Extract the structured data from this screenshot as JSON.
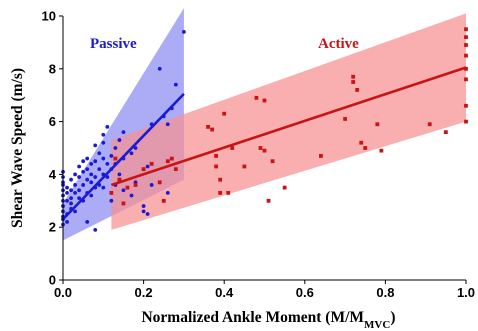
{
  "chart_data": {
    "type": "scatter",
    "title": "",
    "xlabel": "Normalized Ankle Moment (M/M",
    "xlabel_sub": "MVC",
    "xlabel_end": ")",
    "ylabel": "Shear Wave Speed (m/s)",
    "xlim": [
      0,
      1
    ],
    "ylim": [
      0,
      10
    ],
    "x_ticks": [
      "0.0",
      "0.2",
      "0.4",
      "0.6",
      "0.8",
      "1.0"
    ],
    "y_ticks": [
      "0",
      "2",
      "4",
      "6",
      "8",
      "10"
    ],
    "grid": false,
    "series": [
      {
        "name": "Passive",
        "color": "#1a1ad6",
        "band_color": "#8a8af2",
        "marker": "circle",
        "fit": {
          "x": [
            0.0,
            0.3
          ],
          "y": [
            2.3,
            7.05
          ]
        },
        "band": {
          "x": [
            0.0,
            0.3
          ],
          "upper": [
            2.9,
            10.3
          ],
          "lower": [
            1.5,
            3.8
          ]
        },
        "points": [
          [
            0.0,
            2.4
          ],
          [
            0.0,
            2.6
          ],
          [
            0.0,
            2.8
          ],
          [
            0.0,
            3.0
          ],
          [
            0.0,
            3.2
          ],
          [
            0.0,
            3.4
          ],
          [
            0.0,
            3.6
          ],
          [
            0.0,
            3.7
          ],
          [
            0.0,
            3.9
          ],
          [
            0.0,
            4.1
          ],
          [
            0.0,
            2.1
          ],
          [
            0.0,
            2.3
          ],
          [
            0.01,
            2.5
          ],
          [
            0.01,
            3.0
          ],
          [
            0.01,
            3.3
          ],
          [
            0.01,
            3.5
          ],
          [
            0.01,
            2.2
          ],
          [
            0.02,
            2.7
          ],
          [
            0.02,
            3.1
          ],
          [
            0.02,
            3.4
          ],
          [
            0.02,
            3.8
          ],
          [
            0.02,
            2.9
          ],
          [
            0.03,
            3.3
          ],
          [
            0.03,
            3.6
          ],
          [
            0.03,
            4.0
          ],
          [
            0.03,
            2.6
          ],
          [
            0.04,
            3.4
          ],
          [
            0.04,
            3.9
          ],
          [
            0.04,
            4.3
          ],
          [
            0.04,
            3.1
          ],
          [
            0.05,
            3.6
          ],
          [
            0.05,
            4.5
          ],
          [
            0.05,
            3.0
          ],
          [
            0.05,
            4.1
          ],
          [
            0.06,
            3.3
          ],
          [
            0.06,
            3.8
          ],
          [
            0.06,
            4.2
          ],
          [
            0.06,
            2.2
          ],
          [
            0.06,
            4.6
          ],
          [
            0.07,
            3.7
          ],
          [
            0.07,
            4.4
          ],
          [
            0.07,
            3.2
          ],
          [
            0.07,
            4.0
          ],
          [
            0.08,
            3.5
          ],
          [
            0.08,
            4.5
          ],
          [
            0.08,
            5.1
          ],
          [
            0.08,
            1.9
          ],
          [
            0.08,
            3.9
          ],
          [
            0.09,
            4.2
          ],
          [
            0.09,
            3.6
          ],
          [
            0.09,
            4.8
          ],
          [
            0.1,
            4.0
          ],
          [
            0.1,
            4.6
          ],
          [
            0.1,
            5.2
          ],
          [
            0.1,
            5.5
          ],
          [
            0.1,
            3.5
          ],
          [
            0.11,
            5.8
          ],
          [
            0.11,
            4.4
          ],
          [
            0.11,
            3.9
          ],
          [
            0.12,
            4.7
          ],
          [
            0.12,
            3.0
          ],
          [
            0.12,
            4.2
          ],
          [
            0.13,
            5.0
          ],
          [
            0.13,
            4.4
          ],
          [
            0.13,
            3.6
          ],
          [
            0.14,
            5.3
          ],
          [
            0.14,
            4.0
          ],
          [
            0.14,
            3.8
          ],
          [
            0.15,
            4.6
          ],
          [
            0.15,
            5.6
          ],
          [
            0.15,
            3.4
          ],
          [
            0.17,
            3.2
          ],
          [
            0.17,
            4.8
          ],
          [
            0.18,
            3.7
          ],
          [
            0.18,
            5.0
          ],
          [
            0.2,
            2.6
          ],
          [
            0.2,
            2.8
          ],
          [
            0.21,
            2.5
          ],
          [
            0.21,
            4.3
          ],
          [
            0.22,
            5.9
          ],
          [
            0.22,
            3.6
          ],
          [
            0.24,
            8.0
          ],
          [
            0.25,
            3.0
          ],
          [
            0.25,
            6.2
          ],
          [
            0.26,
            5.9
          ],
          [
            0.26,
            3.3
          ],
          [
            0.27,
            6.5
          ],
          [
            0.28,
            7.4
          ],
          [
            0.3,
            9.4
          ]
        ]
      },
      {
        "name": "Active",
        "color": "#c81414",
        "band_color": "#f79090",
        "marker": "square",
        "fit": {
          "x": [
            0.12,
            1.0
          ],
          "y": [
            3.6,
            8.05
          ]
        },
        "band": {
          "x": [
            0.12,
            1.0
          ],
          "upper": [
            5.3,
            10.1
          ],
          "lower": [
            1.9,
            6.0
          ]
        },
        "points": [
          [
            0.12,
            3.3
          ],
          [
            0.13,
            4.6
          ],
          [
            0.14,
            3.8
          ],
          [
            0.15,
            2.9
          ],
          [
            0.16,
            3.5
          ],
          [
            0.18,
            3.6
          ],
          [
            0.2,
            4.2
          ],
          [
            0.22,
            4.4
          ],
          [
            0.24,
            3.7
          ],
          [
            0.25,
            3.0
          ],
          [
            0.26,
            4.5
          ],
          [
            0.27,
            4.6
          ],
          [
            0.28,
            4.2
          ],
          [
            0.36,
            5.8
          ],
          [
            0.37,
            5.7
          ],
          [
            0.38,
            4.7
          ],
          [
            0.38,
            4.3
          ],
          [
            0.39,
            3.8
          ],
          [
            0.39,
            3.3
          ],
          [
            0.4,
            6.3
          ],
          [
            0.41,
            3.3
          ],
          [
            0.42,
            5.0
          ],
          [
            0.45,
            4.3
          ],
          [
            0.48,
            6.9
          ],
          [
            0.5,
            6.8
          ],
          [
            0.49,
            5.0
          ],
          [
            0.5,
            4.9
          ],
          [
            0.51,
            3.0
          ],
          [
            0.52,
            4.5
          ],
          [
            0.55,
            3.5
          ],
          [
            0.64,
            4.7
          ],
          [
            0.7,
            6.1
          ],
          [
            0.72,
            7.7
          ],
          [
            0.72,
            7.5
          ],
          [
            0.73,
            7.2
          ],
          [
            0.74,
            5.2
          ],
          [
            0.75,
            5.0
          ],
          [
            0.78,
            5.9
          ],
          [
            0.79,
            4.9
          ],
          [
            0.91,
            5.9
          ],
          [
            0.95,
            5.6
          ],
          [
            1.0,
            9.5
          ],
          [
            1.0,
            9.2
          ],
          [
            1.0,
            8.9
          ],
          [
            1.0,
            8.5
          ],
          [
            1.0,
            8.0
          ],
          [
            1.0,
            7.6
          ],
          [
            1.0,
            6.6
          ],
          [
            1.0,
            6.0
          ]
        ]
      }
    ]
  }
}
